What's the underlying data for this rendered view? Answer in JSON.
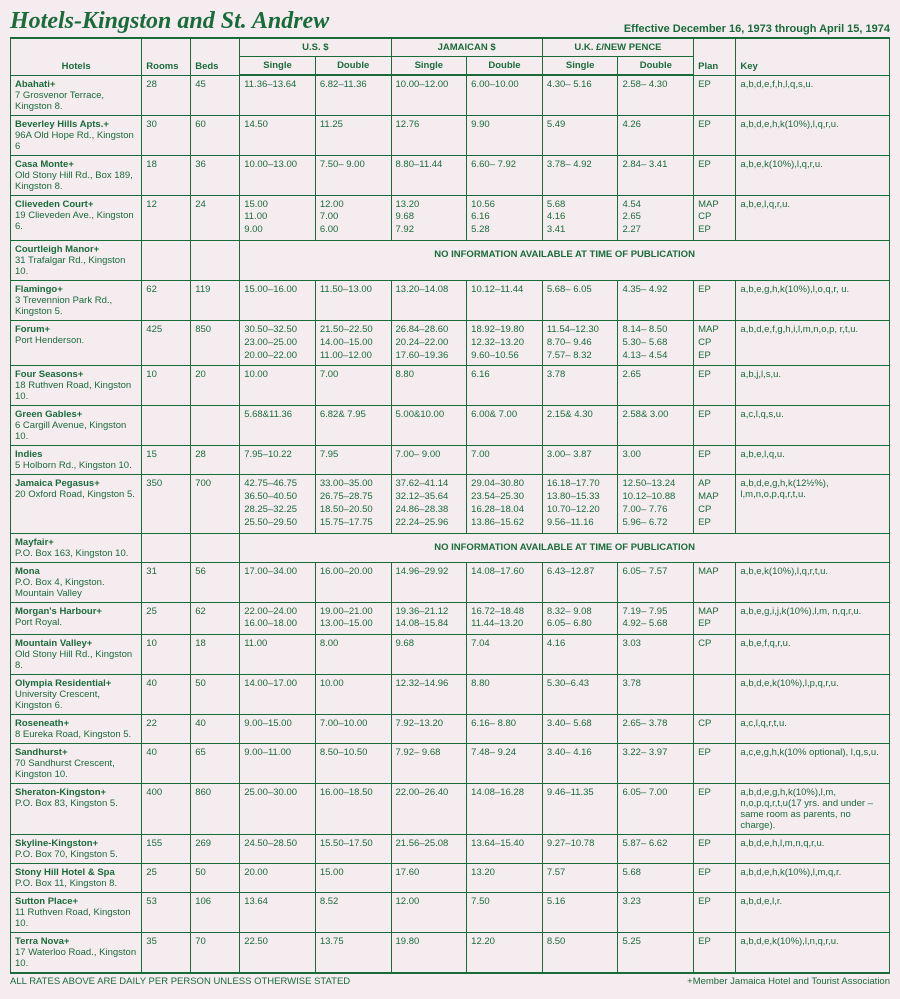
{
  "title": "Hotels-Kingston and St. Andrew",
  "effective": "Effective December 16, 1973 through April 15, 1974",
  "groupHeaders": {
    "us": "U.S. $",
    "jam": "JAMAICAN $",
    "uk": "U.K. £/NEW PENCE"
  },
  "cols": {
    "hotels": "Hotels",
    "rooms": "Rooms",
    "beds": "Beds",
    "single": "Single",
    "double": "Double",
    "plan": "Plan",
    "key": "Key"
  },
  "noinfo": "NO INFORMATION AVAILABLE AT TIME OF PUBLICATION",
  "footer": {
    "left": "ALL RATES ABOVE ARE DAILY PER PERSON UNLESS OTHERWISE STATED",
    "right": "+Member Jamaica Hotel and Tourist Association"
  },
  "rows": [
    {
      "name": "Abahati+",
      "addr": "7 Grosvenor Terrace, Kingston 8.",
      "rooms": "28",
      "beds": "45",
      "usS": "11.36–13.64",
      "usD": "6.82–11.36",
      "jS": "10.00–12.00",
      "jD": "6.00–10.00",
      "ukS": "4.30– 5.16",
      "ukD": "2.58– 4.30",
      "plan": "EP",
      "key": "a,b,d,e,f,h,l,q,s,u."
    },
    {
      "name": "Beverley Hills Apts.+",
      "addr": "96A Old Hope Rd., Kingston 6",
      "rooms": "30",
      "beds": "60",
      "usS": "14.50",
      "usD": "11.25",
      "jS": "12.76",
      "jD": "9.90",
      "ukS": "5.49",
      "ukD": "4.26",
      "plan": "EP",
      "key": "a,b,d,e,h,k(10%),l,q,r,u."
    },
    {
      "name": "Casa Monte+",
      "addr": "Old Stony Hill Rd., Box 189, Kingston 8.",
      "rooms": "18",
      "beds": "36",
      "usS": "10.00–13.00",
      "usD": "7.50– 9.00",
      "jS": "8.80–11.44",
      "jD": "6.60– 7.92",
      "ukS": "3.78– 4.92",
      "ukD": "2.84– 3.41",
      "plan": "EP",
      "key": "a,b,e,k(10%),l,q,r,u."
    },
    {
      "name": "Clieveden Court+",
      "addr": "19 Clieveden Ave., Kingston 6.",
      "rooms": "12",
      "beds": "24",
      "usS": "15.00\n11.00\n9.00",
      "usD": "12.00\n7.00\n6.00",
      "jS": "13.20\n9.68\n7.92",
      "jD": "10.56\n6.16\n5.28",
      "ukS": "5.68\n4.16\n3.41",
      "ukD": "4.54\n2.65\n2.27",
      "plan": "MAP\nCP\nEP",
      "key": "a,b,e,l,q,r,u."
    },
    {
      "name": "Courtleigh Manor+",
      "addr": "31 Trafalgar Rd., Kingston 10.",
      "noinfo": true
    },
    {
      "name": "Flamingo+",
      "addr": "3 Trevennion Park Rd., Kingston 5.",
      "rooms": "62",
      "beds": "119",
      "usS": "15.00–16.00",
      "usD": "11.50–13.00",
      "jS": "13.20–14.08",
      "jD": "10.12–11.44",
      "ukS": "5.68– 6.05",
      "ukD": "4.35– 4.92",
      "plan": "EP",
      "key": "a,b,e,g,h,k(10%),l,o,q,r, u."
    },
    {
      "name": "Forum+",
      "addr": "Port Henderson.",
      "rooms": "425",
      "beds": "850",
      "usS": "30.50–32.50\n23.00–25.00\n20.00–22.00",
      "usD": "21.50–22.50\n14.00–15.00\n11.00–12.00",
      "jS": "26.84–28.60\n20.24–22.00\n17.60–19.36",
      "jD": "18.92–19.80\n12.32–13.20\n9.60–10.56",
      "ukS": "11.54–12.30\n8.70– 9.46\n7.57– 8.32",
      "ukD": "8.14– 8.50\n5.30– 5.68\n4.13– 4.54",
      "plan": "MAP\nCP\nEP",
      "key": "a,b,d,e,f,g,h,i,l,m,n,o,p, r,t,u."
    },
    {
      "name": "Four Seasons+",
      "addr": "18 Ruthven Road, Kingston 10.",
      "rooms": "10",
      "beds": "20",
      "usS": "10.00",
      "usD": "7.00",
      "jS": "8.80",
      "jD": "6.16",
      "ukS": "3.78",
      "ukD": "2.65",
      "plan": "EP",
      "key": "a,b,j,l,s,u."
    },
    {
      "name": "Green Gables+",
      "addr": "6 Cargill Avenue, Kingston 10.",
      "rooms": "",
      "beds": "",
      "usS": "5.68&11.36",
      "usD": "6.82& 7.95",
      "jS": "5.00&10.00",
      "jD": "6.00& 7.00",
      "ukS": "2.15& 4.30",
      "ukD": "2.58& 3.00",
      "plan": "EP",
      "key": "a,c,l,q,s,u."
    },
    {
      "name": "Indies",
      "addr": "5 Holborn Rd., Kingston 10.",
      "rooms": "15",
      "beds": "28",
      "usS": "7.95–10.22",
      "usD": "7.95",
      "jS": "7.00– 9.00",
      "jD": "7.00",
      "ukS": "3.00– 3.87",
      "ukD": "3.00",
      "plan": "EP",
      "key": "a,b,e,l,q,u."
    },
    {
      "name": "Jamaica Pegasus+",
      "addr": "20 Oxford Road, Kingston 5.",
      "rooms": "350",
      "beds": "700",
      "usS": "42.75–46.75\n36.50–40.50\n28.25–32.25\n25.50–29.50",
      "usD": "33.00–35.00\n26.75–28.75\n18.50–20.50\n15.75–17.75",
      "jS": "37.62–41.14\n32.12–35.64\n24.86–28.38\n22.24–25.96",
      "jD": "29.04–30.80\n23.54–25.30\n16.28–18.04\n13.86–15.62",
      "ukS": "16.18–17.70\n13.80–15.33\n10.70–12.20\n9.56–11.16",
      "ukD": "12.50–13.24\n10.12–10.88\n7.00– 7.76\n5.96– 6.72",
      "plan": "AP\nMAP\nCP\nEP",
      "key": "a,b,d,e,g,h,k(12½%), l,m,n,o,p,q,r,t,u."
    },
    {
      "name": "Mayfair+",
      "addr": "P.O. Box 163, Kingston 10.",
      "noinfo": true
    },
    {
      "name": "Mona",
      "addr": "P.O. Box 4, Kingston. Mountain Valley",
      "rooms": "31",
      "beds": "56",
      "usS": "17.00–34.00",
      "usD": "16.00–20.00",
      "jS": "14.96–29.92",
      "jD": "14.08–17.60",
      "ukS": "6.43–12.87",
      "ukD": "6.05– 7.57",
      "plan": "MAP",
      "key": "a,b,e,k(10%),l,q,r,t,u."
    },
    {
      "name": "Morgan's Harbour+",
      "addr": "Port Royal.",
      "rooms": "25",
      "beds": "62",
      "usS": "22.00–24.00\n16.00–18.00",
      "usD": "19.00–21.00\n13.00–15.00",
      "jS": "19.36–21.12\n14.08–15.84",
      "jD": "16.72–18.48\n11.44–13.20",
      "ukS": "8.32– 9.08\n6.05– 6.80",
      "ukD": "7.19– 7.95\n4.92– 5.68",
      "plan": "MAP\nEP",
      "key": "a,b,e,g,i,j,k(10%),l,m, n,q,r,u."
    },
    {
      "name": "Mountain Valley+",
      "addr": "Old Stony Hill Rd., Kingston 8.",
      "rooms": "10",
      "beds": "18",
      "usS": "11.00",
      "usD": "8.00",
      "jS": "9.68",
      "jD": "7.04",
      "ukS": "4.16",
      "ukD": "3.03",
      "plan": "CP",
      "key": "a,b,e,f,q,r,u."
    },
    {
      "name": "Olympia Residential+",
      "addr": "University Crescent, Kingston 6.",
      "rooms": "40",
      "beds": "50",
      "usS": "14.00–17.00",
      "usD": "10.00",
      "jS": "12.32–14.96",
      "jD": "8.80",
      "ukS": "5.30–6.43",
      "ukD": "3.78",
      "plan": "",
      "key": "a,b,d,e,k(10%),l,p,q,r,u."
    },
    {
      "name": "Roseneath+",
      "addr": "8 Eureka Road, Kingston 5.",
      "rooms": "22",
      "beds": "40",
      "usS": "9.00–15.00",
      "usD": "7.00–10.00",
      "jS": "7.92–13.20",
      "jD": "6.16– 8.80",
      "ukS": "3.40– 5.68",
      "ukD": "2.65– 3.78",
      "plan": "CP",
      "key": "a,c,l,q,r,t,u."
    },
    {
      "name": "Sandhurst+",
      "addr": "70 Sandhurst Crescent, Kingston 10.",
      "rooms": "40",
      "beds": "65",
      "usS": "9.00–11.00",
      "usD": "8.50–10.50",
      "jS": "7.92– 9.68",
      "jD": "7.48– 9.24",
      "ukS": "3.40– 4.16",
      "ukD": "3.22– 3.97",
      "plan": "EP",
      "key": "a,c,e,g,h,k(10% optional), l,q,s,u."
    },
    {
      "name": "Sheraton-Kingston+",
      "addr": "P.O. Box 83, Kingston 5.",
      "rooms": "400",
      "beds": "860",
      "usS": "25.00–30.00",
      "usD": "16.00–18.50",
      "jS": "22.00–26.40",
      "jD": "14.08–16.28",
      "ukS": "9.46–11.35",
      "ukD": "6.05– 7.00",
      "plan": "EP",
      "key": "a,b,d,e,g,h,k(10%),l,m, n,o,p,q,r,t,u(17 yrs. and under – same room as parents, no charge)."
    },
    {
      "name": "Skyline-Kingston+",
      "addr": "P.O. Box 70, Kingston 5.",
      "rooms": "155",
      "beds": "269",
      "usS": "24.50–28.50",
      "usD": "15.50–17.50",
      "jS": "21.56–25.08",
      "jD": "13.64–15.40",
      "ukS": "9.27–10.78",
      "ukD": "5.87– 6.62",
      "plan": "EP",
      "key": "a,b,d,e,h,l,m,n,q,r,u."
    },
    {
      "name": "Stony Hill Hotel & Spa",
      "addr": "P.O. Box 11, Kingston 8.",
      "rooms": "25",
      "beds": "50",
      "usS": "20.00",
      "usD": "15.00",
      "jS": "17.60",
      "jD": "13.20",
      "ukS": "7.57",
      "ukD": "5.68",
      "plan": "EP",
      "key": "a,b,d,e,h,k(10%),l,m,q,r."
    },
    {
      "name": "Sutton Place+",
      "addr": "11 Ruthven Road, Kingston 10.",
      "rooms": "53",
      "beds": "106",
      "usS": "13.64",
      "usD": "8.52",
      "jS": "12.00",
      "jD": "7.50",
      "ukS": "5.16",
      "ukD": "3.23",
      "plan": "EP",
      "key": "a,b,d,e,l,r."
    },
    {
      "name": "Terra Nova+",
      "addr": "17 Waterloo Road., Kingston 10.",
      "rooms": "35",
      "beds": "70",
      "usS": "22.50",
      "usD": "13.75",
      "jS": "19.80",
      "jD": "12.20",
      "ukS": "8.50",
      "ukD": "5.25",
      "plan": "EP",
      "key": "a,b,d,e,k(10%),l,n,q,r,u."
    }
  ]
}
